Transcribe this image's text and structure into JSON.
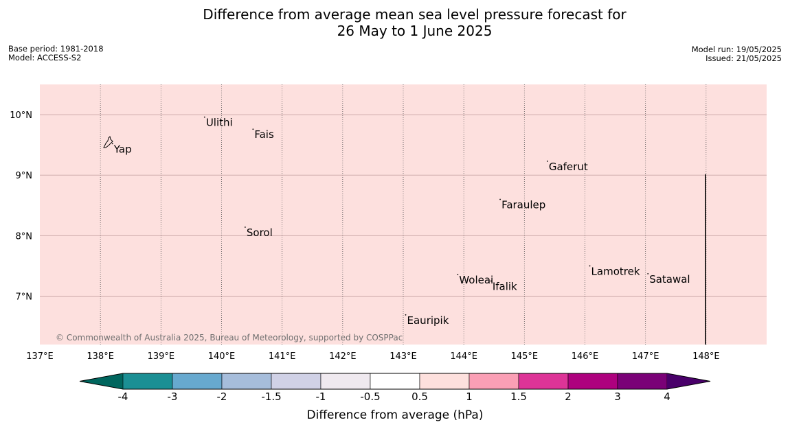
{
  "title": {
    "line1": "Difference from average mean sea level pressure forecast for",
    "line2": "26 May to 1 June 2025"
  },
  "meta_left": {
    "base_period": "Base period: 1981-2018",
    "model": "Model: ACCESS-S2"
  },
  "meta_right": {
    "model_run": "Model run: 19/05/2025",
    "issued": "Issued: 21/05/2025"
  },
  "map": {
    "lon_range": [
      137,
      149
    ],
    "lat_range": [
      6.2,
      10.5
    ],
    "background_color": "#fde0de",
    "background_anomaly_class": "0.5 to 1",
    "lon_ticks": [
      {
        "value": 137,
        "label": "137°E"
      },
      {
        "value": 138,
        "label": "138°E"
      },
      {
        "value": 139,
        "label": "139°E"
      },
      {
        "value": 140,
        "label": "140°E"
      },
      {
        "value": 141,
        "label": "141°E"
      },
      {
        "value": 142,
        "label": "142°E"
      },
      {
        "value": 143,
        "label": "143°E"
      },
      {
        "value": 144,
        "label": "144°E"
      },
      {
        "value": 145,
        "label": "145°E"
      },
      {
        "value": 146,
        "label": "146°E"
      },
      {
        "value": 147,
        "label": "147°E"
      },
      {
        "value": 148,
        "label": "148°E"
      }
    ],
    "lat_ticks": [
      {
        "value": 10,
        "label": "10°N"
      },
      {
        "value": 9,
        "label": "9°N"
      },
      {
        "value": 8,
        "label": "8°N"
      },
      {
        "value": 7,
        "label": "7°N"
      }
    ],
    "places": [
      {
        "name": "Yap",
        "lon": 138.2,
        "lat": 9.52
      },
      {
        "name": "Ulithi",
        "lon": 139.72,
        "lat": 9.96
      },
      {
        "name": "Fais",
        "lon": 140.52,
        "lat": 9.76
      },
      {
        "name": "Gaferut",
        "lon": 145.38,
        "lat": 9.23
      },
      {
        "name": "Faraulep",
        "lon": 144.6,
        "lat": 8.6
      },
      {
        "name": "Sorol",
        "lon": 140.39,
        "lat": 8.14
      },
      {
        "name": "Lamotrek",
        "lon": 146.08,
        "lat": 7.5
      },
      {
        "name": "Woleai",
        "lon": 143.9,
        "lat": 7.36
      },
      {
        "name": "Ifalik",
        "lon": 144.45,
        "lat": 7.25
      },
      {
        "name": "Satawal",
        "lon": 147.04,
        "lat": 7.37
      },
      {
        "name": "Eauripik",
        "lon": 143.04,
        "lat": 6.69
      }
    ],
    "copyright": "© Commonwealth of Australia 2025, Bureau of Meteorology, supported by COSPPac"
  },
  "colorbar": {
    "label": "Difference from average (hPa)",
    "ticks": [
      "-4",
      "-3",
      "-2",
      "-1.5",
      "-1",
      "-0.5",
      "0.5",
      "1",
      "1.5",
      "2",
      "3",
      "4"
    ],
    "colors": [
      "#00665e",
      "#1b8f94",
      "#67a9cf",
      "#a6bddb",
      "#d0d1e6",
      "#efe9ef",
      "#ffffff",
      "#fde0dd",
      "#fa9fb5",
      "#dd3497",
      "#ae017e",
      "#7a0177",
      "#49006a"
    ]
  }
}
